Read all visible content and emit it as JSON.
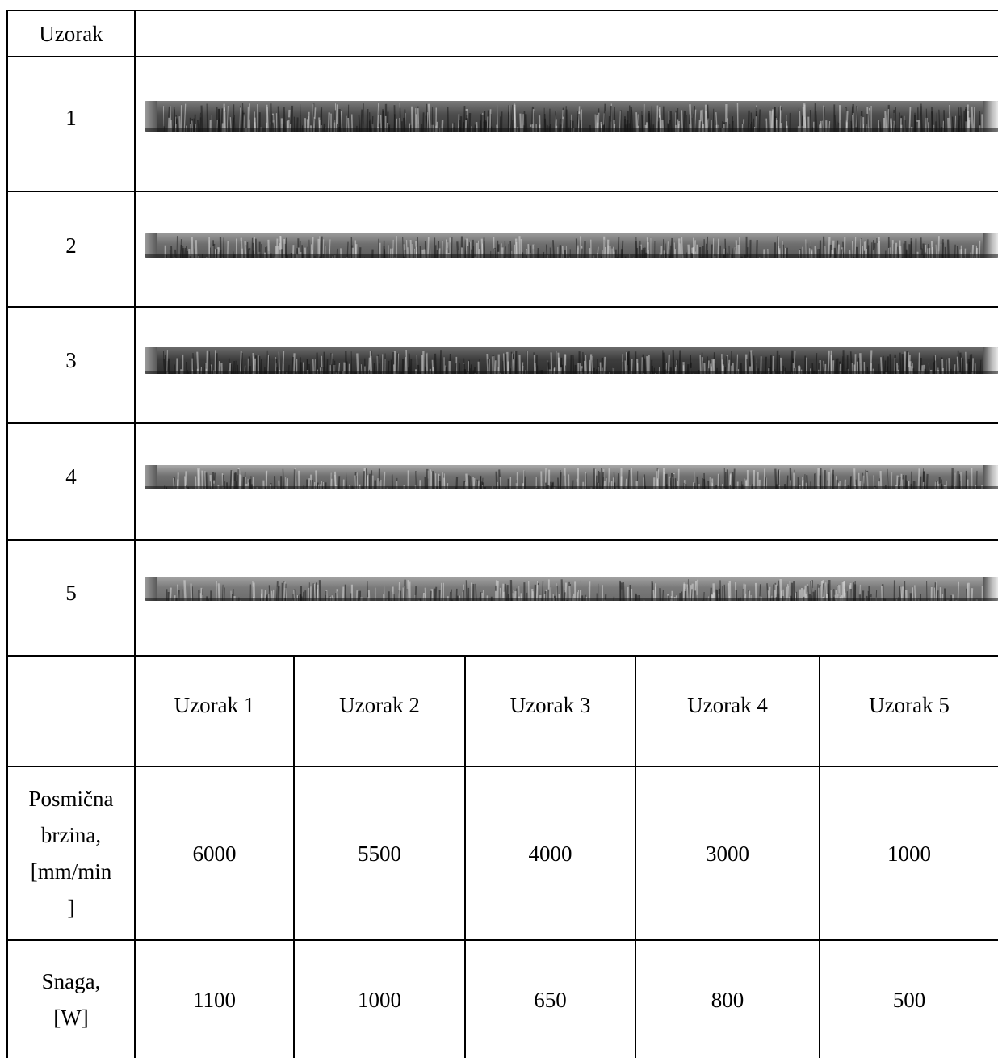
{
  "header_label": "Uzorak",
  "sample_rows": [
    {
      "label": "1",
      "tone": [
        "#7a7a7a",
        "#4c4c4c",
        "#3a3a3a"
      ]
    },
    {
      "label": "2",
      "tone": [
        "#9a9a9a",
        "#6e6e6e",
        "#5a5a5a"
      ]
    },
    {
      "label": "3",
      "tone": [
        "#6a6a6a",
        "#3e3e3e",
        "#2e2e2e"
      ]
    },
    {
      "label": "4",
      "tone": [
        "#a8a8a8",
        "#707070",
        "#5e5e5e"
      ]
    },
    {
      "label": "5",
      "tone": [
        "#a4a4a4",
        "#7a7a7a",
        "#6c6c6c"
      ]
    }
  ],
  "params_table": {
    "columns": [
      "Uzorak 1",
      "Uzorak 2",
      "Uzorak 3",
      "Uzorak 4",
      "Uzorak 5"
    ],
    "rows": [
      {
        "label_lines": [
          "Posmična",
          "brzina,",
          "[mm/min",
          "]"
        ],
        "values": [
          "6000",
          "5500",
          "4000",
          "3000",
          "1000"
        ]
      },
      {
        "label_lines": [
          "Snaga,",
          "[W]"
        ],
        "values": [
          "1100",
          "1000",
          "650",
          "800",
          "500"
        ]
      }
    ]
  }
}
